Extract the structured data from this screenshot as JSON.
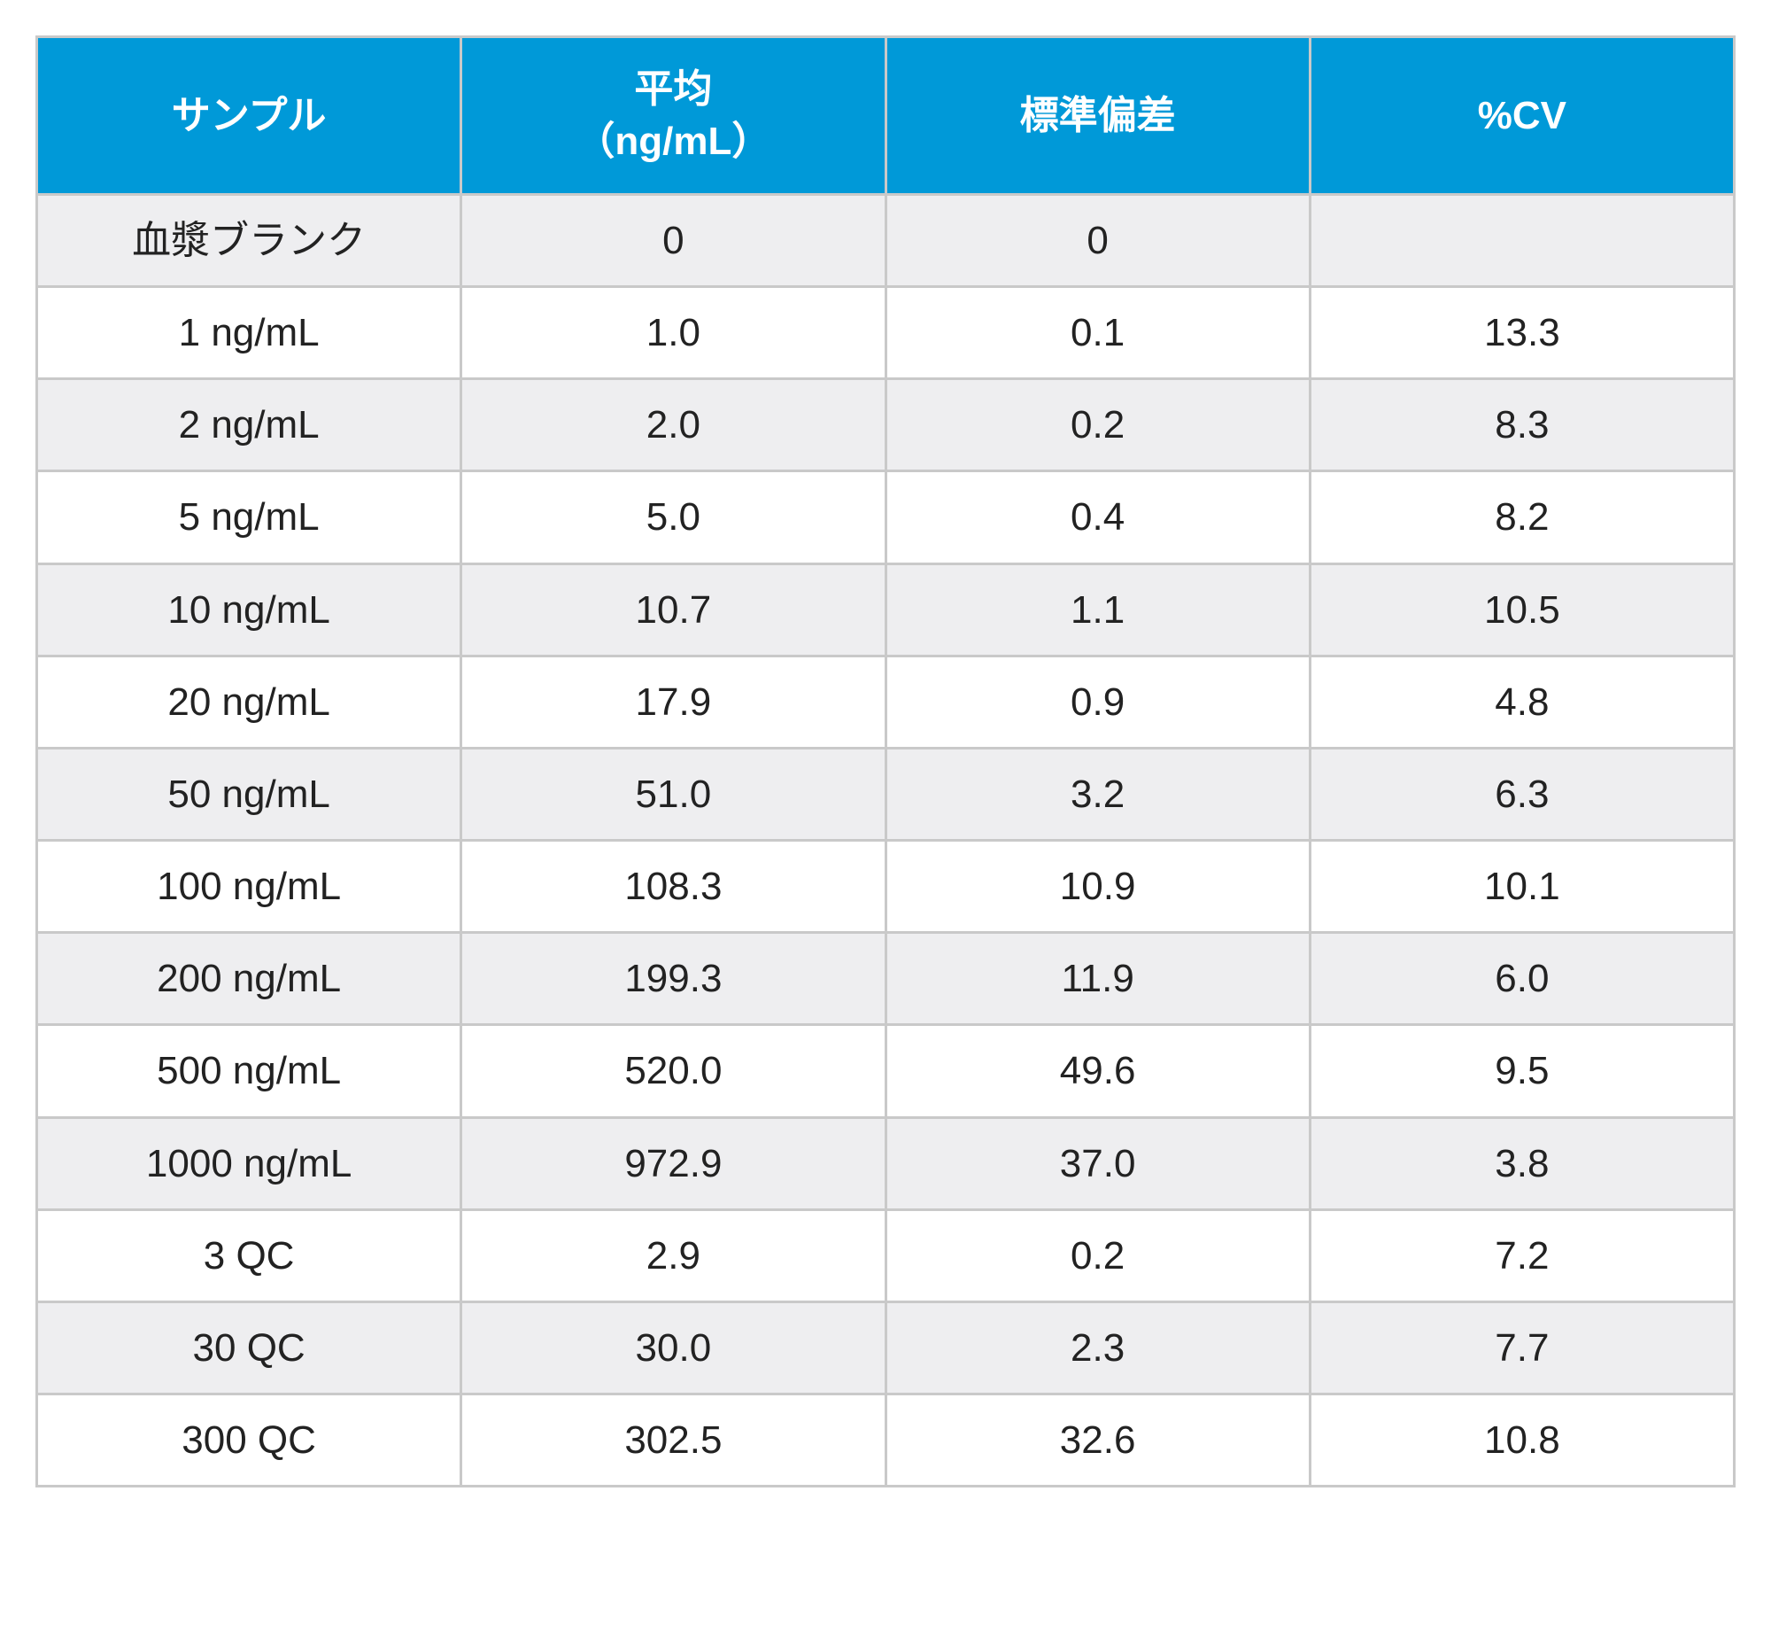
{
  "table": {
    "type": "table",
    "header_bg": "#0099d8",
    "header_fg": "#ffffff",
    "row_bg_odd": "#eeeef0",
    "row_bg_even": "#ffffff",
    "border_color": "#c9c9c9",
    "text_color": "#222222",
    "header_fontsize": 44,
    "cell_fontsize": 44,
    "columns": [
      {
        "label": "サンプル"
      },
      {
        "label": "平均\n（ng/mL）"
      },
      {
        "label": "標準偏差"
      },
      {
        "label": "%CV"
      }
    ],
    "rows": [
      {
        "sample": "血漿ブランク",
        "mean": "0",
        "sd": "0",
        "cv": ""
      },
      {
        "sample": "1 ng/mL",
        "mean": "1.0",
        "sd": "0.1",
        "cv": "13.3"
      },
      {
        "sample": "2 ng/mL",
        "mean": "2.0",
        "sd": "0.2",
        "cv": "8.3"
      },
      {
        "sample": "5 ng/mL",
        "mean": "5.0",
        "sd": "0.4",
        "cv": "8.2"
      },
      {
        "sample": "10 ng/mL",
        "mean": "10.7",
        "sd": "1.1",
        "cv": "10.5"
      },
      {
        "sample": "20 ng/mL",
        "mean": "17.9",
        "sd": "0.9",
        "cv": "4.8"
      },
      {
        "sample": "50 ng/mL",
        "mean": "51.0",
        "sd": "3.2",
        "cv": "6.3"
      },
      {
        "sample": "100 ng/mL",
        "mean": "108.3",
        "sd": "10.9",
        "cv": "10.1"
      },
      {
        "sample": "200 ng/mL",
        "mean": "199.3",
        "sd": "11.9",
        "cv": "6.0"
      },
      {
        "sample": "500 ng/mL",
        "mean": "520.0",
        "sd": "49.6",
        "cv": "9.5"
      },
      {
        "sample": "1000 ng/mL",
        "mean": "972.9",
        "sd": "37.0",
        "cv": "3.8"
      },
      {
        "sample": "3 QC",
        "mean": "2.9",
        "sd": "0.2",
        "cv": "7.2"
      },
      {
        "sample": "30 QC",
        "mean": "30.0",
        "sd": "2.3",
        "cv": "7.7"
      },
      {
        "sample": "300 QC",
        "mean": "302.5",
        "sd": "32.6",
        "cv": "10.8"
      }
    ]
  }
}
